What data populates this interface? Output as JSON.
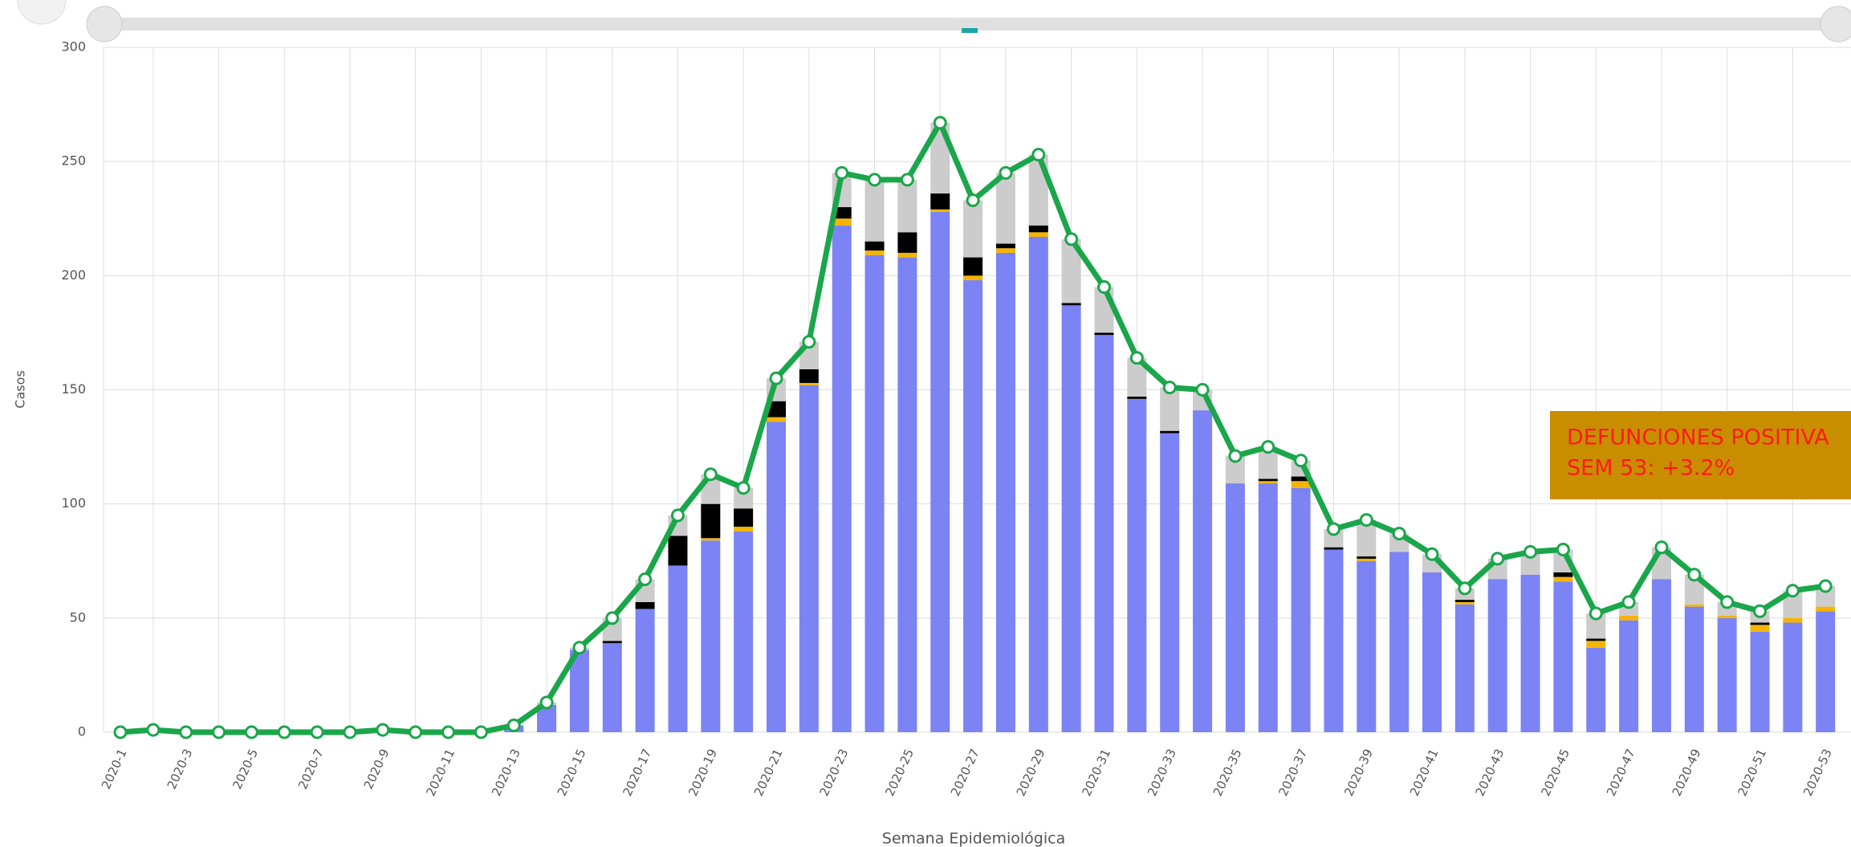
{
  "chart_data": {
    "type": "bar",
    "y_label": "Casos",
    "x_label": "Semana Epidemiológica",
    "annotation": [
      "DEFUNCIONES POSITIVA",
      "SEM  53: +3.2%"
    ],
    "categories": [
      "2020-1",
      null,
      "2020-3",
      null,
      "2020-5",
      null,
      "2020-7",
      null,
      "2020-9",
      null,
      "2020-11",
      null,
      "2020-13",
      null,
      "2020-15",
      null,
      "2020-17",
      null,
      "2020-19",
      null,
      "2020-21",
      null,
      "2020-23",
      null,
      "2020-25",
      null,
      "2020-27",
      null,
      "2020-29",
      null,
      "2020-31",
      null,
      "2020-33",
      null,
      "2020-35",
      null,
      "2020-37",
      null,
      "2020-39",
      null,
      "2020-41",
      null,
      "2020-43",
      null,
      "2020-45",
      null,
      "2020-47",
      null,
      "2020-49",
      null,
      "2020-51",
      null,
      "2020-53"
    ],
    "ylim": [
      0,
      300
    ],
    "yticks": [
      0,
      50,
      100,
      150,
      200,
      250,
      300
    ],
    "grid": true,
    "series": [
      {
        "color": "#7b83f5",
        "values": [
          0,
          1,
          0,
          0,
          0,
          0,
          0,
          0,
          1,
          0,
          0,
          0,
          3,
          12,
          36,
          39,
          54,
          73,
          84,
          88,
          136,
          152,
          222,
          209,
          208,
          228,
          198,
          210,
          217,
          187,
          174,
          146,
          131,
          141,
          109,
          109,
          107,
          80,
          75,
          79,
          70,
          56,
          67,
          69,
          66,
          37,
          49,
          67,
          55,
          50,
          44,
          48,
          53
        ]
      },
      {
        "color": "#f5b400",
        "values": [
          0,
          0,
          0,
          0,
          0,
          0,
          0,
          0,
          0,
          0,
          0,
          0,
          0,
          0,
          0,
          0,
          0,
          0,
          1,
          2,
          2,
          1,
          3,
          2,
          2,
          1,
          2,
          2,
          2,
          0,
          0,
          0,
          0,
          0,
          0,
          1,
          3,
          0,
          1,
          0,
          0,
          1,
          0,
          0,
          2,
          3,
          2,
          0,
          1,
          1,
          3,
          2,
          2
        ]
      },
      {
        "color": "#000000",
        "values": [
          0,
          0,
          0,
          0,
          0,
          0,
          0,
          0,
          0,
          0,
          0,
          0,
          0,
          0,
          0,
          1,
          3,
          13,
          15,
          8,
          7,
          6,
          5,
          4,
          9,
          7,
          8,
          2,
          3,
          1,
          1,
          1,
          1,
          0,
          0,
          1,
          2,
          1,
          1,
          0,
          0,
          1,
          0,
          0,
          2,
          1,
          0,
          0,
          0,
          0,
          1,
          0,
          0
        ]
      },
      {
        "color": "#cccccc",
        "values": [
          0,
          0,
          0,
          0,
          0,
          0,
          0,
          0,
          0,
          0,
          0,
          0,
          0,
          1,
          1,
          10,
          10,
          9,
          13,
          9,
          10,
          12,
          15,
          27,
          23,
          31,
          25,
          31,
          31,
          28,
          20,
          17,
          19,
          9,
          12,
          14,
          7,
          8,
          16,
          8,
          8,
          5,
          9,
          10,
          10,
          11,
          6,
          14,
          13,
          6,
          5,
          12,
          9
        ]
      }
    ],
    "line": {
      "color": "#1aa64a",
      "values": [
        0,
        1,
        0,
        0,
        0,
        0,
        0,
        0,
        1,
        0,
        0,
        0,
        3,
        13,
        37,
        50,
        67,
        95,
        113,
        107,
        155,
        171,
        245,
        242,
        242,
        267,
        233,
        245,
        253,
        216,
        195,
        164,
        151,
        150,
        121,
        125,
        119,
        89,
        93,
        87,
        78,
        63,
        76,
        79,
        80,
        52,
        57,
        81,
        69,
        57,
        53,
        62,
        64
      ]
    }
  }
}
